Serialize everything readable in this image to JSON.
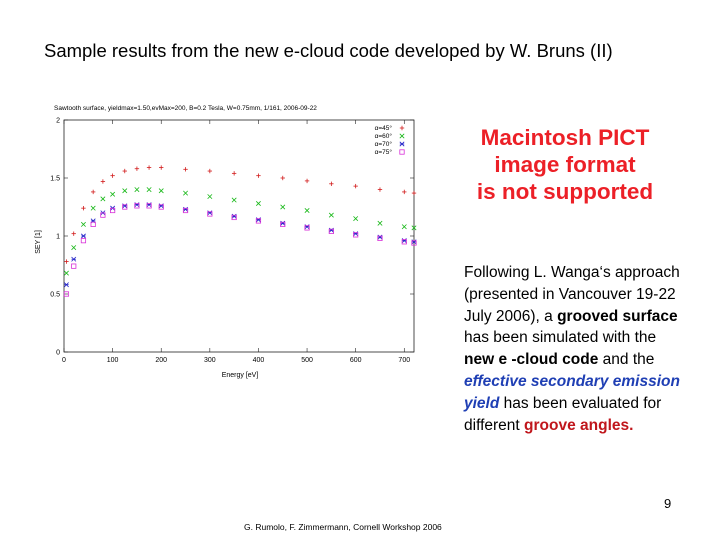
{
  "slide": {
    "title": "Sample results from the new e-cloud code developed by W. Bruns (II)",
    "pict_notice": [
      "Macintosh PICT",
      "image format",
      "is not supported"
    ],
    "body": {
      "p1": "Following L. Wanga‘s approach (presented in Vancouver 19-22 July 2006), a ",
      "p2": "grooved surface",
      "p3": " has been simulated with the ",
      "p4": "new e -cloud code",
      "p5": " and the ",
      "p6": "effective secondary emission yield",
      "p7": " has been evaluated for different ",
      "p8": "groove angles."
    },
    "page_number": "9",
    "footer": "G. Rumolo, F. Zimmermann, Cornell Workshop 2006"
  },
  "chart_data": {
    "type": "scatter",
    "title": "Sawtooth surface, yieldmax=1.50,evMax=200, B=0.2 Tesla, W=0.75mm, 1/161, 2006-09-22",
    "xlabel": "Energy [eV]",
    "ylabel": "SEY [1]",
    "xlim": [
      0,
      720
    ],
    "ylim": [
      0,
      2
    ],
    "x_ticks": [
      "0",
      "100",
      "200",
      "300",
      "400",
      "500",
      "600",
      "700"
    ],
    "y_ticks": [
      "0",
      "0.5",
      "1",
      "1.5",
      "2"
    ],
    "legend_position": "top-right",
    "grid": false,
    "series": [
      {
        "name": "α=45°",
        "marker": "+",
        "color": "#d21b1b",
        "x": [
          5,
          20,
          40,
          60,
          80,
          100,
          125,
          150,
          175,
          200,
          250,
          300,
          350,
          400,
          450,
          500,
          550,
          600,
          650,
          700,
          720
        ],
        "y": [
          0.78,
          1.02,
          1.24,
          1.38,
          1.47,
          1.52,
          1.56,
          1.58,
          1.59,
          1.59,
          1.575,
          1.56,
          1.54,
          1.52,
          1.5,
          1.475,
          1.45,
          1.43,
          1.4,
          1.38,
          1.37
        ]
      },
      {
        "name": "α=60°",
        "marker": "x",
        "color": "#18b818",
        "x": [
          5,
          20,
          40,
          60,
          80,
          100,
          125,
          150,
          175,
          200,
          250,
          300,
          350,
          400,
          450,
          500,
          550,
          600,
          650,
          700,
          720
        ],
        "y": [
          0.68,
          0.9,
          1.1,
          1.24,
          1.32,
          1.36,
          1.39,
          1.4,
          1.4,
          1.39,
          1.37,
          1.34,
          1.31,
          1.28,
          1.25,
          1.22,
          1.18,
          1.15,
          1.11,
          1.08,
          1.07
        ]
      },
      {
        "name": "α=70°",
        "marker": "*",
        "color": "#2222c8",
        "x": [
          5,
          20,
          40,
          60,
          80,
          100,
          125,
          150,
          175,
          200,
          250,
          300,
          350,
          400,
          450,
          500,
          550,
          600,
          650,
          700,
          720
        ],
        "y": [
          0.58,
          0.8,
          1.0,
          1.13,
          1.2,
          1.24,
          1.26,
          1.27,
          1.27,
          1.26,
          1.23,
          1.2,
          1.17,
          1.14,
          1.11,
          1.08,
          1.05,
          1.02,
          0.99,
          0.96,
          0.95
        ]
      },
      {
        "name": "α=75°",
        "marker": "□",
        "color": "#d830d8",
        "x": [
          5,
          20,
          40,
          60,
          80,
          100,
          125,
          150,
          175,
          200,
          250,
          300,
          350,
          400,
          450,
          500,
          550,
          600,
          650,
          700,
          720
        ],
        "y": [
          0.5,
          0.74,
          0.96,
          1.1,
          1.18,
          1.22,
          1.25,
          1.26,
          1.26,
          1.25,
          1.22,
          1.19,
          1.16,
          1.13,
          1.1,
          1.07,
          1.04,
          1.01,
          0.98,
          0.95,
          0.94
        ]
      }
    ]
  }
}
